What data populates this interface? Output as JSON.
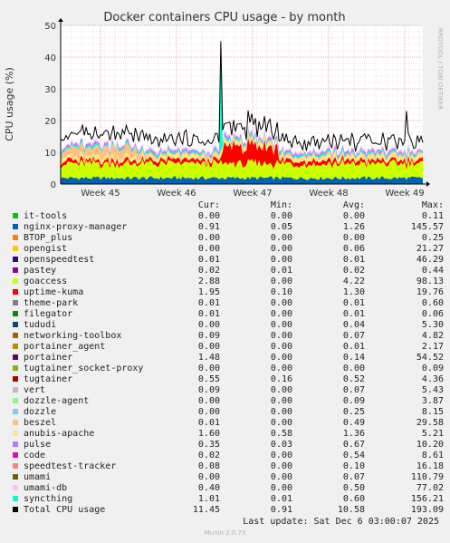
{
  "chart_data": {
    "type": "area",
    "title": "Docker containers CPU usage - by month",
    "ylabel": "CPU usage (%)",
    "ylim": [
      0,
      50
    ],
    "yticks": [
      "0",
      "10",
      "20",
      "30",
      "40",
      "50"
    ],
    "xticks": [
      "Week 45",
      "Week 46",
      "Week 47",
      "Week 48",
      "Week 49"
    ],
    "grid": true,
    "total_series_peaks": [
      {
        "week": "Week 47 (start)",
        "value": 45
      },
      {
        "week": "Week 49",
        "value": 23
      }
    ],
    "series": [
      {
        "name": "it-tools",
        "color": "#00cc00",
        "cur": "0.00",
        "min": "0.00",
        "avg": "0.00",
        "max": "0.11"
      },
      {
        "name": "nginx-proxy-manager",
        "color": "#0066b3",
        "cur": "0.91",
        "min": "0.05",
        "avg": "1.26",
        "max": "145.57"
      },
      {
        "name": "BTOP_plus",
        "color": "#ff8000",
        "cur": "0.00",
        "min": "0.00",
        "avg": "0.00",
        "max": "0.25"
      },
      {
        "name": "opengist",
        "color": "#ffcc00",
        "cur": "0.00",
        "min": "0.00",
        "avg": "0.06",
        "max": "21.27"
      },
      {
        "name": "openspeedtest",
        "color": "#330099",
        "cur": "0.01",
        "min": "0.00",
        "avg": "0.01",
        "max": "46.29"
      },
      {
        "name": "pastey",
        "color": "#990099",
        "cur": "0.02",
        "min": "0.01",
        "avg": "0.02",
        "max": "0.44"
      },
      {
        "name": "goaccess",
        "color": "#ccff00",
        "cur": "2.88",
        "min": "0.00",
        "avg": "4.22",
        "max": "98.13"
      },
      {
        "name": "uptime-kuma",
        "color": "#ff0000",
        "cur": "1.95",
        "min": "0.10",
        "avg": "1.30",
        "max": "19.76"
      },
      {
        "name": "theme-park",
        "color": "#808080",
        "cur": "0.01",
        "min": "0.00",
        "avg": "0.01",
        "max": "0.60"
      },
      {
        "name": "filegator",
        "color": "#008f00",
        "cur": "0.01",
        "min": "0.00",
        "avg": "0.01",
        "max": "0.06"
      },
      {
        "name": "tududi",
        "color": "#00487d",
        "cur": "0.00",
        "min": "0.00",
        "avg": "0.04",
        "max": "5.30"
      },
      {
        "name": "networking-toolbox",
        "color": "#b35a00",
        "cur": "0.09",
        "min": "0.00",
        "avg": "0.07",
        "max": "4.82"
      },
      {
        "name": "portainer_agent",
        "color": "#b38f00",
        "cur": "0.00",
        "min": "0.00",
        "avg": "0.01",
        "max": "2.17"
      },
      {
        "name": "portainer",
        "color": "#6b006b",
        "cur": "1.48",
        "min": "0.00",
        "avg": "0.14",
        "max": "54.52"
      },
      {
        "name": "tugtainer_socket-proxy",
        "color": "#8fb300",
        "cur": "0.00",
        "min": "0.00",
        "avg": "0.00",
        "max": "0.09"
      },
      {
        "name": "tugtainer",
        "color": "#b30000",
        "cur": "0.55",
        "min": "0.16",
        "avg": "0.52",
        "max": "4.36"
      },
      {
        "name": "vert",
        "color": "#bebebe",
        "cur": "0.09",
        "min": "0.00",
        "avg": "0.07",
        "max": "5.43"
      },
      {
        "name": "dozzle-agent",
        "color": "#80ff80",
        "cur": "0.00",
        "min": "0.00",
        "avg": "0.09",
        "max": "3.87"
      },
      {
        "name": "dozzle",
        "color": "#80c9ff",
        "cur": "0.00",
        "min": "0.00",
        "avg": "0.25",
        "max": "8.15"
      },
      {
        "name": "beszel",
        "color": "#ffc080",
        "cur": "0.01",
        "min": "0.00",
        "avg": "0.49",
        "max": "29.58"
      },
      {
        "name": "anubis-apache",
        "color": "#ffe680",
        "cur": "1.60",
        "min": "0.58",
        "avg": "1.36",
        "max": "5.21"
      },
      {
        "name": "pulse",
        "color": "#aa80ff",
        "cur": "0.35",
        "min": "0.03",
        "avg": "0.67",
        "max": "10.20"
      },
      {
        "name": "code",
        "color": "#ee00cc",
        "cur": "0.02",
        "min": "0.00",
        "avg": "0.54",
        "max": "8.61"
      },
      {
        "name": "speedtest-tracker",
        "color": "#ff8080",
        "cur": "0.08",
        "min": "0.00",
        "avg": "0.10",
        "max": "16.18"
      },
      {
        "name": "umami",
        "color": "#666600",
        "cur": "0.00",
        "min": "0.00",
        "avg": "0.07",
        "max": "110.79"
      },
      {
        "name": "umami-db",
        "color": "#ffbfff",
        "cur": "0.40",
        "min": "0.00",
        "avg": "0.50",
        "max": "77.02"
      },
      {
        "name": "syncthing",
        "color": "#00ffcc",
        "cur": "1.01",
        "min": "0.01",
        "avg": "0.60",
        "max": "156.21"
      },
      {
        "name": "Total CPU usage",
        "color": "#000000",
        "cur": "11.45",
        "min": "0.91",
        "avg": "10.58",
        "max": "193.09"
      }
    ]
  },
  "legend_header": {
    "cur": "Cur:",
    "min": "Min:",
    "avg": "Avg:",
    "max": "Max:"
  },
  "side_label": "RRDTOOL / TOBI OETIKER",
  "last_update": "Last update: Sat Dec  6 03:00:07 2025",
  "footer": "Munin 2.0.73"
}
